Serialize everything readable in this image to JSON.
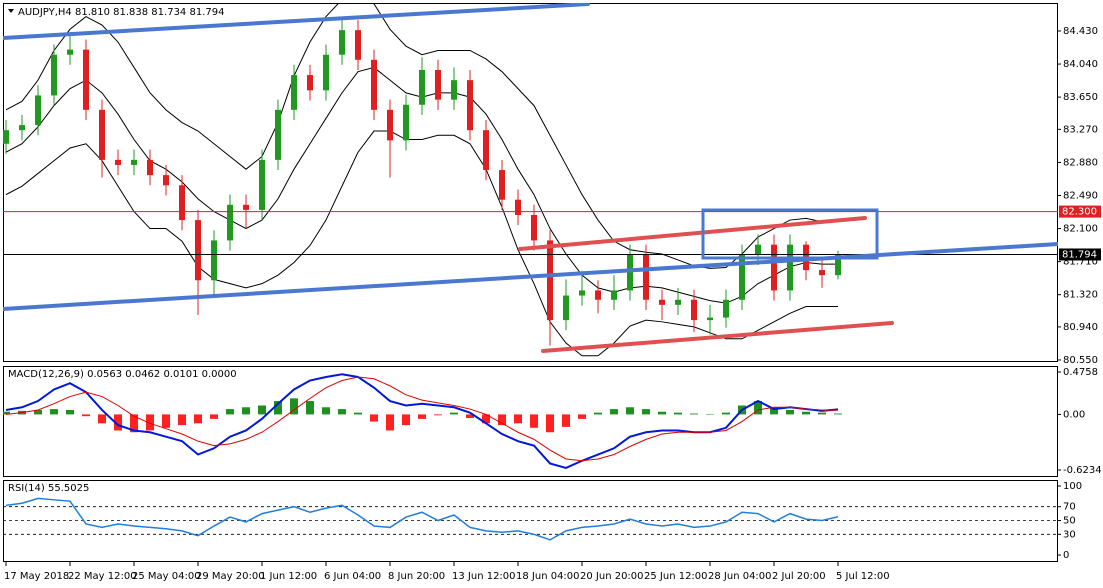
{
  "chart_data": [
    {
      "type": "candlestick",
      "title": "AUDJPY,H4  81.810 81.838 81.734 81.794",
      "categories": [
        "17 May 2018",
        null,
        null,
        null,
        "22 May 12:00",
        null,
        null,
        null,
        "25 May 04:00",
        null,
        null,
        null,
        "29 May 20:00",
        null,
        null,
        null,
        "1 Jun 12:00",
        null,
        null,
        null,
        "6 Jun 04:00",
        null,
        null,
        null,
        "8 Jun 20:00",
        null,
        null,
        null,
        "13 Jun 12:00",
        null,
        null,
        null,
        "18 Jun 04:00",
        null,
        null,
        null,
        "20 Jun 20:00",
        null,
        null,
        null,
        "25 Jun 12:00",
        null,
        null,
        null,
        "28 Jun 04:00",
        null,
        null,
        null,
        "2 Jul 20:00",
        null,
        null,
        null,
        "5 Jul 12:00"
      ],
      "open": [
        83.1,
        83.26,
        83.32,
        83.67,
        84.15,
        84.21,
        83.5,
        82.91,
        82.85,
        82.91,
        82.73,
        82.61,
        82.2,
        81.49,
        81.96,
        82.38,
        82.32,
        82.91,
        83.5,
        83.91,
        83.73,
        84.15,
        84.44,
        84.09,
        83.5,
        83.14,
        83.56,
        83.97,
        83.62,
        83.85,
        83.26,
        82.79,
        82.44,
        82.26,
        81.96,
        81.02,
        81.31,
        81.37,
        81.26,
        81.37,
        81.79,
        81.26,
        81.2,
        81.26,
        81.02,
        81.05,
        81.26,
        81.79,
        81.91,
        81.37,
        81.91,
        81.61,
        81.55
      ],
      "high": [
        83.38,
        83.44,
        83.79,
        84.27,
        84.4,
        84.33,
        83.62,
        83.03,
        83.03,
        83.03,
        82.85,
        82.73,
        82.32,
        82.08,
        82.5,
        82.5,
        83.03,
        83.62,
        84.03,
        84.03,
        84.27,
        84.56,
        84.56,
        84.21,
        83.62,
        83.68,
        84.12,
        84.09,
        84.0,
        83.97,
        83.38,
        82.91,
        82.56,
        82.38,
        82.08,
        81.5,
        81.6,
        81.49,
        81.55,
        81.91,
        81.91,
        81.38,
        81.4,
        81.38,
        81.2,
        81.38,
        81.91,
        82.03,
        82.03,
        82.03,
        81.95,
        81.73,
        81.838
      ],
      "low": [
        82.98,
        83.14,
        83.2,
        83.55,
        84.03,
        83.38,
        82.7,
        82.73,
        82.73,
        82.61,
        82.49,
        82.08,
        81.08,
        81.3,
        81.84,
        82.1,
        82.2,
        82.79,
        83.38,
        83.61,
        83.61,
        84.03,
        83.97,
        83.38,
        82.7,
        83.02,
        83.44,
        83.5,
        83.5,
        83.14,
        82.67,
        82.32,
        82.14,
        81.84,
        80.72,
        80.9,
        81.19,
        81.1,
        81.14,
        81.25,
        81.14,
        81.02,
        81.08,
        80.88,
        80.85,
        80.93,
        81.14,
        81.67,
        81.25,
        81.25,
        81.49,
        81.4,
        81.5
      ],
      "close": [
        83.26,
        83.32,
        83.67,
        84.15,
        84.21,
        83.5,
        82.91,
        82.85,
        82.91,
        82.73,
        82.61,
        82.2,
        81.49,
        81.96,
        82.38,
        82.32,
        82.91,
        83.5,
        83.91,
        83.73,
        84.15,
        84.44,
        84.09,
        83.5,
        83.14,
        83.56,
        83.97,
        83.62,
        83.85,
        83.26,
        82.79,
        82.44,
        82.26,
        81.96,
        81.02,
        81.31,
        81.37,
        81.26,
        81.37,
        81.79,
        81.26,
        81.2,
        81.26,
        81.02,
        81.05,
        81.26,
        81.79,
        81.91,
        81.37,
        81.91,
        81.61,
        81.55,
        81.794
      ],
      "up_color": "#1f9a1f",
      "down_color": "#e02020",
      "bands": [
        {
          "color": "#000000",
          "values": [
            83.5,
            83.6,
            83.85,
            84.2,
            84.45,
            84.6,
            84.5,
            84.3,
            84.0,
            83.7,
            83.5,
            83.35,
            83.25,
            83.1,
            82.95,
            82.8,
            82.95,
            83.35,
            83.9,
            84.3,
            84.6,
            84.8,
            84.9,
            84.75,
            84.45,
            84.25,
            84.15,
            84.2,
            84.2,
            84.2,
            84.1,
            83.95,
            83.75,
            83.55,
            83.2,
            82.85,
            82.5,
            82.2,
            81.95,
            81.85,
            81.82,
            81.8,
            81.73,
            81.66,
            81.63,
            81.64,
            81.8,
            82.0,
            82.1,
            82.2,
            82.22,
            82.18,
            82.18
          ]
        },
        {
          "color": "#000000",
          "values": [
            83.0,
            83.1,
            83.3,
            83.55,
            83.75,
            83.85,
            83.7,
            83.45,
            83.15,
            82.9,
            82.8,
            82.65,
            82.45,
            82.3,
            82.2,
            82.1,
            82.2,
            82.45,
            82.8,
            83.1,
            83.4,
            83.7,
            83.95,
            84.0,
            83.85,
            83.7,
            83.65,
            83.7,
            83.7,
            83.65,
            83.45,
            83.15,
            82.8,
            82.5,
            82.1,
            81.8,
            81.55,
            81.4,
            81.35,
            81.4,
            81.42,
            81.4,
            81.35,
            81.3,
            81.25,
            81.22,
            81.3,
            81.45,
            81.55,
            81.65,
            81.7,
            81.68,
            81.68
          ]
        },
        {
          "color": "#000000",
          "values": [
            82.5,
            82.6,
            82.75,
            82.9,
            83.05,
            83.1,
            82.9,
            82.6,
            82.3,
            82.1,
            82.1,
            81.95,
            81.65,
            81.5,
            81.45,
            81.4,
            81.45,
            81.55,
            81.7,
            81.9,
            82.2,
            82.6,
            83.0,
            83.25,
            83.25,
            83.15,
            83.15,
            83.2,
            83.2,
            83.1,
            82.8,
            82.35,
            81.85,
            81.45,
            81.0,
            80.75,
            80.6,
            80.6,
            80.75,
            80.95,
            81.02,
            81.0,
            80.97,
            80.94,
            80.87,
            80.8,
            80.8,
            80.9,
            81.0,
            81.1,
            81.18,
            81.18,
            81.18
          ]
        }
      ],
      "price_lines": [
        {
          "value": 82.3,
          "label": "82.300",
          "color": "#e02020"
        },
        {
          "value": 81.794,
          "label": "81.794",
          "color": "#000000"
        }
      ],
      "ylim": [
        80.526,
        84.76
      ],
      "yticks": [
        {
          "value": 84.43,
          "label": "84.430"
        },
        {
          "value": 84.04,
          "label": "84.040"
        },
        {
          "value": 83.65,
          "label": "83.650"
        },
        {
          "value": 83.27,
          "label": "83.270"
        },
        {
          "value": 82.88,
          "label": "82.880"
        },
        {
          "value": 82.49,
          "label": "82.490"
        },
        {
          "value": 82.1,
          "label": "82.100"
        },
        {
          "value": 81.71,
          "label": "81.710"
        },
        {
          "value": 81.32,
          "label": "81.320"
        },
        {
          "value": 80.94,
          "label": "80.940"
        },
        {
          "value": 80.55,
          "label": "80.550"
        }
      ]
    },
    {
      "type": "macd",
      "title": "MACD(12,26,9) 0.0563 0.0462 0.0101 0.0000",
      "values": [
        0.03,
        0.04,
        0.05,
        0.06,
        0.05,
        -0.02,
        -0.1,
        -0.18,
        -0.2,
        -0.18,
        -0.15,
        -0.12,
        -0.1,
        -0.05,
        0.06,
        0.08,
        0.1,
        0.15,
        0.18,
        0.15,
        0.08,
        0.06,
        0.02,
        -0.08,
        -0.18,
        -0.12,
        -0.05,
        -0.01,
        0.02,
        -0.04,
        -0.1,
        -0.12,
        -0.1,
        -0.15,
        -0.2,
        -0.14,
        -0.05,
        0.02,
        0.06,
        0.08,
        0.06,
        0.03,
        0.02,
        0.01,
        0.0,
        0.02,
        0.1,
        0.15,
        0.08,
        0.05,
        0.03,
        0.02,
        0.0101
      ],
      "pos_color": "#1f8f1f",
      "neg_color": "#ff2020",
      "lines": [
        {
          "color": "#0018d8",
          "width": 2,
          "values": [
            0.05,
            0.08,
            0.15,
            0.28,
            0.35,
            0.25,
            0.05,
            -0.12,
            -0.18,
            -0.2,
            -0.25,
            -0.3,
            -0.45,
            -0.38,
            -0.25,
            -0.18,
            -0.05,
            0.12,
            0.28,
            0.38,
            0.42,
            0.45,
            0.42,
            0.3,
            0.15,
            0.1,
            0.12,
            0.1,
            0.08,
            0.02,
            -0.1,
            -0.22,
            -0.3,
            -0.35,
            -0.55,
            -0.6,
            -0.52,
            -0.45,
            -0.38,
            -0.25,
            -0.2,
            -0.18,
            -0.18,
            -0.2,
            -0.2,
            -0.15,
            0.05,
            0.15,
            0.06,
            0.08,
            0.06,
            0.04,
            0.0563
          ]
        },
        {
          "color": "#e00000",
          "width": 1,
          "values": [
            0.0,
            0.02,
            0.05,
            0.12,
            0.2,
            0.25,
            0.2,
            0.1,
            -0.02,
            -0.1,
            -0.16,
            -0.22,
            -0.3,
            -0.35,
            -0.33,
            -0.28,
            -0.2,
            -0.08,
            0.05,
            0.18,
            0.3,
            0.38,
            0.42,
            0.4,
            0.32,
            0.22,
            0.16,
            0.13,
            0.1,
            0.06,
            0.0,
            -0.1,
            -0.2,
            -0.28,
            -0.4,
            -0.5,
            -0.52,
            -0.5,
            -0.45,
            -0.36,
            -0.28,
            -0.22,
            -0.2,
            -0.2,
            -0.2,
            -0.18,
            -0.08,
            0.05,
            0.08,
            0.08,
            0.06,
            0.05,
            0.0462
          ]
        }
      ],
      "ylim": [
        -0.702,
        0.543
      ],
      "yticks": [
        0.4758,
        {
          "value": 0,
          "label": "0.00"
        },
        -0.6234
      ]
    },
    {
      "type": "line",
      "title": "RSI(14) 55.5025",
      "color": "#1e7fe0",
      "values": [
        72,
        75,
        82,
        80,
        78,
        45,
        40,
        45,
        42,
        40,
        38,
        35,
        28,
        42,
        55,
        48,
        60,
        65,
        70,
        62,
        68,
        72,
        58,
        42,
        40,
        55,
        62,
        50,
        58,
        40,
        35,
        33,
        35,
        30,
        22,
        35,
        40,
        42,
        45,
        52,
        45,
        42,
        45,
        40,
        42,
        48,
        62,
        60,
        48,
        60,
        52,
        50,
        55.5025
      ],
      "levels": [
        30,
        50,
        70
      ],
      "ylim": [
        -10.1,
        108.7
      ],
      "yticks": [
        0,
        30,
        50,
        70,
        100
      ]
    }
  ]
}
